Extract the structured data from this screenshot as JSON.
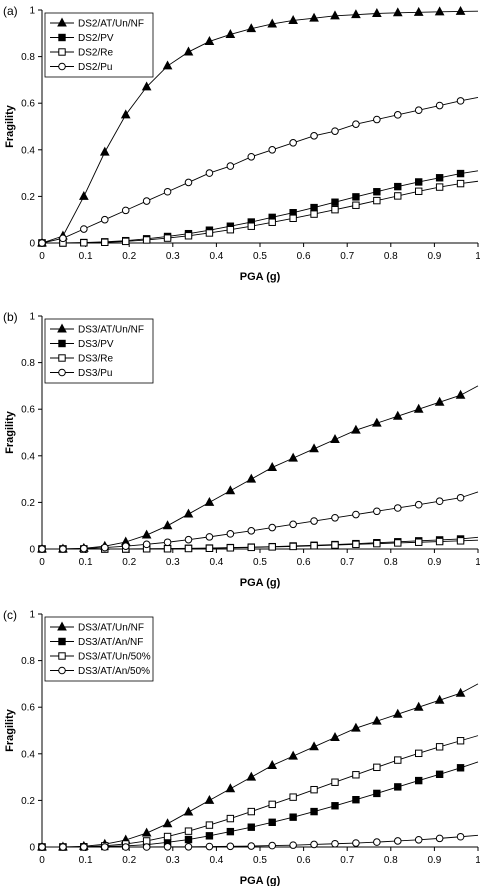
{
  "chart_data": [
    {
      "panel_label": "(a)",
      "type": "line",
      "xlabel": "PGA (g)",
      "ylabel": "Fragility",
      "xlim": [
        0,
        1
      ],
      "ylim": [
        0,
        1
      ],
      "x_ticks": [
        "0",
        "0.1",
        "0.2",
        "0.3",
        "0.4",
        "0.5",
        "0.6",
        "0.7",
        "0.8",
        "0.9",
        "1"
      ],
      "y_ticks": [
        "0",
        "0.2",
        "0.4",
        "0.6",
        "0.8",
        "1"
      ],
      "grid": false,
      "legend_position": "top-left",
      "series": [
        {
          "name": "DS2/AT/Un/NF",
          "marker": "filled-triangle",
          "x": [
            0,
            0.048,
            0.096,
            0.144,
            0.192,
            0.24,
            0.288,
            0.336,
            0.384,
            0.432,
            0.48,
            0.528,
            0.576,
            0.624,
            0.672,
            0.72,
            0.768,
            0.816,
            0.864,
            0.912,
            0.96,
            1.0
          ],
          "y": [
            0,
            0.03,
            0.2,
            0.39,
            0.55,
            0.67,
            0.76,
            0.82,
            0.865,
            0.895,
            0.92,
            0.94,
            0.955,
            0.965,
            0.975,
            0.98,
            0.985,
            0.988,
            0.99,
            0.992,
            0.994,
            0.995
          ]
        },
        {
          "name": "DS2/PV",
          "marker": "filled-square",
          "x": [
            0,
            0.048,
            0.096,
            0.144,
            0.192,
            0.24,
            0.288,
            0.336,
            0.384,
            0.432,
            0.48,
            0.528,
            0.576,
            0.624,
            0.672,
            0.72,
            0.768,
            0.816,
            0.864,
            0.912,
            0.96,
            1.0
          ],
          "y": [
            0,
            0,
            0.002,
            0.005,
            0.01,
            0.018,
            0.028,
            0.04,
            0.055,
            0.072,
            0.09,
            0.11,
            0.13,
            0.152,
            0.175,
            0.198,
            0.22,
            0.242,
            0.262,
            0.28,
            0.298,
            0.31
          ]
        },
        {
          "name": "DS2/Re",
          "marker": "open-square",
          "x": [
            0,
            0.048,
            0.096,
            0.144,
            0.192,
            0.24,
            0.288,
            0.336,
            0.384,
            0.432,
            0.48,
            0.528,
            0.576,
            0.624,
            0.672,
            0.72,
            0.768,
            0.816,
            0.864,
            0.912,
            0.96,
            1.0
          ],
          "y": [
            0,
            0,
            0.001,
            0.003,
            0.007,
            0.013,
            0.021,
            0.031,
            0.043,
            0.057,
            0.072,
            0.089,
            0.106,
            0.124,
            0.143,
            0.162,
            0.182,
            0.202,
            0.222,
            0.24,
            0.255,
            0.265
          ]
        },
        {
          "name": "DS2/Pu",
          "marker": "open-circle",
          "x": [
            0,
            0.048,
            0.096,
            0.144,
            0.192,
            0.24,
            0.288,
            0.336,
            0.384,
            0.432,
            0.48,
            0.528,
            0.576,
            0.624,
            0.672,
            0.72,
            0.768,
            0.816,
            0.864,
            0.912,
            0.96,
            1.0
          ],
          "y": [
            0,
            0.02,
            0.06,
            0.1,
            0.14,
            0.18,
            0.22,
            0.26,
            0.3,
            0.33,
            0.37,
            0.4,
            0.43,
            0.46,
            0.48,
            0.51,
            0.53,
            0.55,
            0.57,
            0.59,
            0.61,
            0.625
          ]
        }
      ]
    },
    {
      "panel_label": "(b)",
      "type": "line",
      "xlabel": "PGA (g)",
      "ylabel": "Fragility",
      "xlim": [
        0,
        1
      ],
      "ylim": [
        0,
        1
      ],
      "x_ticks": [
        "0",
        "0.1",
        "0.2",
        "0.3",
        "0.4",
        "0.5",
        "0.6",
        "0.7",
        "0.8",
        "0.9",
        "1"
      ],
      "y_ticks": [
        "0",
        "0.2",
        "0.4",
        "0.6",
        "0.8",
        "1"
      ],
      "grid": false,
      "legend_position": "top-left",
      "series": [
        {
          "name": "DS3/AT/Un/NF",
          "marker": "filled-triangle",
          "x": [
            0,
            0.048,
            0.096,
            0.144,
            0.192,
            0.24,
            0.288,
            0.336,
            0.384,
            0.432,
            0.48,
            0.528,
            0.576,
            0.624,
            0.672,
            0.72,
            0.768,
            0.816,
            0.864,
            0.912,
            0.96,
            1.0
          ],
          "y": [
            0,
            0,
            0.003,
            0.012,
            0.03,
            0.06,
            0.1,
            0.15,
            0.2,
            0.25,
            0.3,
            0.35,
            0.39,
            0.43,
            0.47,
            0.51,
            0.54,
            0.57,
            0.6,
            0.63,
            0.66,
            0.7
          ]
        },
        {
          "name": "DS3/PV",
          "marker": "filled-square",
          "x": [
            0,
            0.048,
            0.096,
            0.144,
            0.192,
            0.24,
            0.288,
            0.336,
            0.384,
            0.432,
            0.48,
            0.528,
            0.576,
            0.624,
            0.672,
            0.72,
            0.768,
            0.816,
            0.864,
            0.912,
            0.96,
            1.0
          ],
          "y": [
            0,
            0,
            0,
            0,
            0,
            0.001,
            0.002,
            0.003,
            0.004,
            0.006,
            0.008,
            0.01,
            0.013,
            0.016,
            0.019,
            0.023,
            0.027,
            0.031,
            0.035,
            0.039,
            0.043,
            0.05
          ]
        },
        {
          "name": "DS3/Re",
          "marker": "open-square",
          "x": [
            0,
            0.048,
            0.096,
            0.144,
            0.192,
            0.24,
            0.288,
            0.336,
            0.384,
            0.432,
            0.48,
            0.528,
            0.576,
            0.624,
            0.672,
            0.72,
            0.768,
            0.816,
            0.864,
            0.912,
            0.96,
            1.0
          ],
          "y": [
            0,
            0,
            0,
            0,
            0,
            0.001,
            0.001,
            0.002,
            0.003,
            0.005,
            0.007,
            0.009,
            0.011,
            0.014,
            0.017,
            0.02,
            0.023,
            0.026,
            0.029,
            0.032,
            0.035,
            0.038
          ]
        },
        {
          "name": "DS3/Pu",
          "marker": "open-circle",
          "x": [
            0,
            0.048,
            0.096,
            0.144,
            0.192,
            0.24,
            0.288,
            0.336,
            0.384,
            0.432,
            0.48,
            0.528,
            0.576,
            0.624,
            0.672,
            0.72,
            0.768,
            0.816,
            0.864,
            0.912,
            0.96,
            1.0
          ],
          "y": [
            0,
            0,
            0.002,
            0.006,
            0.012,
            0.02,
            0.029,
            0.04,
            0.052,
            0.065,
            0.078,
            0.092,
            0.106,
            0.12,
            0.134,
            0.148,
            0.162,
            0.176,
            0.19,
            0.205,
            0.22,
            0.245
          ]
        }
      ]
    },
    {
      "panel_label": "(c)",
      "type": "line",
      "xlabel": "PGA (g)",
      "ylabel": "Fragility",
      "xlim": [
        0,
        1
      ],
      "ylim": [
        0,
        1
      ],
      "x_ticks": [
        "0",
        "0.1",
        "0.2",
        "0.3",
        "0.4",
        "0.5",
        "0.6",
        "0.7",
        "0.8",
        "0.9",
        "1"
      ],
      "y_ticks": [
        "0",
        "0.2",
        "0.4",
        "0.6",
        "0.8",
        "1"
      ],
      "grid": false,
      "legend_position": "top-left",
      "series": [
        {
          "name": "DS3/AT/Un/NF",
          "marker": "filled-triangle",
          "x": [
            0,
            0.048,
            0.096,
            0.144,
            0.192,
            0.24,
            0.288,
            0.336,
            0.384,
            0.432,
            0.48,
            0.528,
            0.576,
            0.624,
            0.672,
            0.72,
            0.768,
            0.816,
            0.864,
            0.912,
            0.96,
            1.0
          ],
          "y": [
            0,
            0,
            0.003,
            0.012,
            0.03,
            0.06,
            0.1,
            0.15,
            0.2,
            0.25,
            0.3,
            0.35,
            0.39,
            0.43,
            0.47,
            0.51,
            0.54,
            0.57,
            0.6,
            0.63,
            0.66,
            0.7
          ]
        },
        {
          "name": "DS3/AT/An/NF",
          "marker": "filled-square",
          "x": [
            0,
            0.048,
            0.096,
            0.144,
            0.192,
            0.24,
            0.288,
            0.336,
            0.384,
            0.432,
            0.48,
            0.528,
            0.576,
            0.624,
            0.672,
            0.72,
            0.768,
            0.816,
            0.864,
            0.912,
            0.96,
            1.0
          ],
          "y": [
            0,
            0,
            0,
            0.002,
            0.005,
            0.01,
            0.02,
            0.032,
            0.048,
            0.066,
            0.085,
            0.106,
            0.128,
            0.152,
            0.177,
            0.203,
            0.23,
            0.258,
            0.285,
            0.312,
            0.34,
            0.365
          ]
        },
        {
          "name": "DS3/AT/Un/50%",
          "marker": "open-square",
          "x": [
            0,
            0.048,
            0.096,
            0.144,
            0.192,
            0.24,
            0.288,
            0.336,
            0.384,
            0.432,
            0.48,
            0.528,
            0.576,
            0.624,
            0.672,
            0.72,
            0.768,
            0.816,
            0.864,
            0.912,
            0.96,
            1.0
          ],
          "y": [
            0,
            0,
            0.001,
            0.005,
            0.013,
            0.026,
            0.045,
            0.068,
            0.094,
            0.122,
            0.152,
            0.183,
            0.214,
            0.246,
            0.278,
            0.31,
            0.342,
            0.373,
            0.402,
            0.43,
            0.456,
            0.478
          ]
        },
        {
          "name": "DS3/AT/An/50%",
          "marker": "open-circle",
          "x": [
            0,
            0.048,
            0.096,
            0.144,
            0.192,
            0.24,
            0.288,
            0.336,
            0.384,
            0.432,
            0.48,
            0.528,
            0.576,
            0.624,
            0.672,
            0.72,
            0.768,
            0.816,
            0.864,
            0.912,
            0.96,
            1.0
          ],
          "y": [
            0,
            0,
            0,
            0,
            0,
            0,
            0.001,
            0.001,
            0.002,
            0.003,
            0.004,
            0.006,
            0.008,
            0.011,
            0.014,
            0.017,
            0.021,
            0.026,
            0.031,
            0.037,
            0.044,
            0.05
          ]
        }
      ]
    }
  ]
}
